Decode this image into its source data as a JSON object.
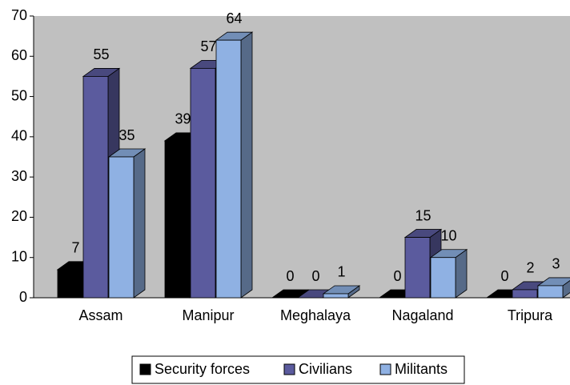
{
  "chart_data": {
    "type": "bar3d",
    "categories": [
      "Assam",
      "Manipur",
      "Meghalaya",
      "Nagaland",
      "Tripura"
    ],
    "series": [
      {
        "name": "Security forces",
        "color": "#000000",
        "values": [
          7,
          39,
          0,
          0,
          0
        ]
      },
      {
        "name": "Civilians",
        "color": "#5b5b9e",
        "values": [
          55,
          57,
          0,
          15,
          2
        ]
      },
      {
        "name": "Militants",
        "color": "#8fb1e3",
        "values": [
          35,
          64,
          1,
          10,
          3
        ]
      }
    ],
    "ylim": [
      0,
      70
    ],
    "yticks": [
      0,
      10,
      20,
      30,
      40,
      50,
      60,
      70
    ],
    "grid": false,
    "legend": "bottom"
  }
}
